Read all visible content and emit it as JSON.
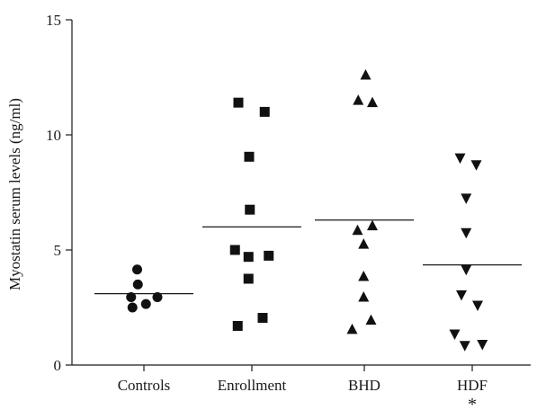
{
  "chart_data": {
    "type": "scatter",
    "title": "",
    "xlabel": "",
    "ylabel": "Myostatin serum levels (ng/ml)",
    "ylim": [
      0,
      15
    ],
    "yticks": [
      0,
      5,
      10,
      15
    ],
    "grid": false,
    "categories": [
      "Controls",
      "Enrollment",
      "BHD",
      "HDF"
    ],
    "groups": [
      {
        "category": "Controls",
        "marker": "circle",
        "mean": 3.1,
        "points": [
          {
            "offset": -0.5,
            "y": 4.15
          },
          {
            "offset": -0.45,
            "y": 3.5
          },
          {
            "offset": -0.95,
            "y": 2.95
          },
          {
            "offset": 1.0,
            "y": 2.95
          },
          {
            "offset": -0.85,
            "y": 2.5
          },
          {
            "offset": 0.15,
            "y": 2.65
          }
        ]
      },
      {
        "category": "Enrollment",
        "marker": "square",
        "mean": 6.0,
        "points": [
          {
            "offset": -1.0,
            "y": 11.4
          },
          {
            "offset": 0.95,
            "y": 11.0
          },
          {
            "offset": -0.2,
            "y": 9.05
          },
          {
            "offset": -0.15,
            "y": 6.75
          },
          {
            "offset": -1.25,
            "y": 5.0
          },
          {
            "offset": -0.25,
            "y": 4.7
          },
          {
            "offset": 1.25,
            "y": 4.75
          },
          {
            "offset": -0.25,
            "y": 3.75
          },
          {
            "offset": 0.8,
            "y": 2.05
          },
          {
            "offset": -1.05,
            "y": 1.7
          }
        ]
      },
      {
        "category": "BHD",
        "marker": "triangle-up",
        "mean": 6.3,
        "points": [
          {
            "offset": 0.1,
            "y": 12.6
          },
          {
            "offset": -0.45,
            "y": 11.5
          },
          {
            "offset": 0.6,
            "y": 11.4
          },
          {
            "offset": -0.5,
            "y": 5.85
          },
          {
            "offset": 0.6,
            "y": 6.05
          },
          {
            "offset": -0.05,
            "y": 5.25
          },
          {
            "offset": -0.05,
            "y": 3.85
          },
          {
            "offset": -0.05,
            "y": 2.95
          },
          {
            "offset": 0.5,
            "y": 1.95
          },
          {
            "offset": -0.9,
            "y": 1.55
          }
        ]
      },
      {
        "category": "HDF",
        "marker": "triangle-down",
        "mean": 4.35,
        "points": [
          {
            "offset": -0.9,
            "y": 9.0
          },
          {
            "offset": 0.3,
            "y": 8.7
          },
          {
            "offset": -0.45,
            "y": 7.25
          },
          {
            "offset": -0.45,
            "y": 5.75
          },
          {
            "offset": -0.45,
            "y": 4.15
          },
          {
            "offset": -0.8,
            "y": 3.05
          },
          {
            "offset": 0.4,
            "y": 2.6
          },
          {
            "offset": -1.3,
            "y": 1.35
          },
          {
            "offset": -0.55,
            "y": 0.85
          },
          {
            "offset": 0.75,
            "y": 0.9
          }
        ]
      }
    ],
    "annotations": [
      {
        "text": "*",
        "category": "HDF"
      }
    ]
  }
}
